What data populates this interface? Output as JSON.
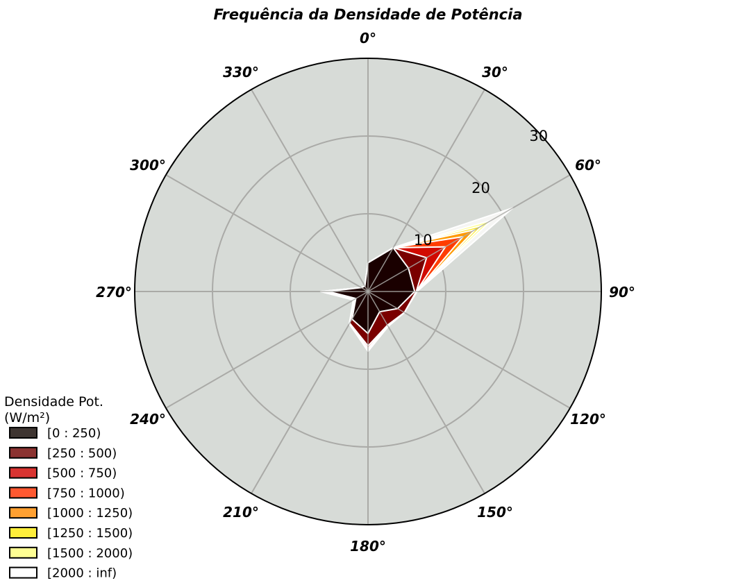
{
  "chart_data": {
    "type": "radar-stacked",
    "title": "Frequência da Densidade de Potência",
    "angle_labels": [
      "0°",
      "30°",
      "60°",
      "90°",
      "120°",
      "150°",
      "180°",
      "210°",
      "240°",
      "270°",
      "300°",
      "330°"
    ],
    "radial_ticks": [
      10,
      20,
      30
    ],
    "radial_tick_labels": [
      "10",
      "20",
      "30"
    ],
    "rlim": [
      0,
      30
    ],
    "directions": [
      0,
      30,
      60,
      90,
      120,
      150,
      180,
      210,
      240,
      270,
      300,
      330
    ],
    "grid": true,
    "background": "#d7dbd7",
    "legend": {
      "title_line1": "Densidade Pot.",
      "title_line2": "(W/m²)",
      "placement": "lower-left"
    },
    "series": [
      {
        "name": "[0 : 250)",
        "color": "#1a0000",
        "legend_color": "#3e3531",
        "values": [
          3.7,
          6.5,
          6.0,
          6.0,
          4.4,
          3.0,
          5.4,
          4.1,
          1.8,
          5.1,
          1.0,
          0.8
        ]
      },
      {
        "name": "[250 : 500)",
        "color": "#7a0000",
        "legend_color": "#8b3331",
        "values": [
          0.0,
          0.0,
          2.7,
          0.2,
          1.0,
          2.0,
          1.6,
          0.6,
          0.2,
          0.2,
          0.0,
          0.0
        ]
      },
      {
        "name": "[500 : 750)",
        "color": "#d10a00",
        "legend_color": "#d93431",
        "values": [
          0.0,
          0.0,
          2.8,
          0.0,
          0.0,
          0.1,
          0.3,
          0.1,
          0.1,
          0.4,
          0.0,
          0.0
        ]
      },
      {
        "name": "[750 : 1000)",
        "color": "#ff3d00",
        "legend_color": "#ff5931",
        "values": [
          0.0,
          0.0,
          2.6,
          0.0,
          0.0,
          0.0,
          0.1,
          0.0,
          0.0,
          0.2,
          0.0,
          0.0
        ]
      },
      {
        "name": "[1000 : 1250)",
        "color": "#ff9a00",
        "legend_color": "#ffa031",
        "values": [
          0.0,
          0.0,
          1.8,
          0.0,
          0.0,
          0.0,
          0.1,
          0.0,
          0.0,
          0.1,
          0.0,
          0.0
        ]
      },
      {
        "name": "[1250 : 1500)",
        "color": "#ffea1c",
        "legend_color": "#ffee3b",
        "values": [
          0.0,
          0.0,
          1.1,
          0.0,
          0.0,
          0.0,
          0.0,
          0.0,
          0.0,
          0.0,
          0.0,
          0.0
        ]
      },
      {
        "name": "[1500 : 2000)",
        "color": "#ffff8c",
        "legend_color": "#ffff94",
        "values": [
          0.0,
          0.0,
          1.3,
          0.0,
          0.0,
          0.0,
          0.1,
          0.0,
          0.0,
          0.0,
          0.0,
          0.0
        ]
      },
      {
        "name": "[2000 : inf)",
        "color": "#f6f6f4",
        "legend_color": "#ffffff",
        "values": [
          0.0,
          0.0,
          3.2,
          0.1,
          0.0,
          0.1,
          0.1,
          0.0,
          0.1,
          0.1,
          0.0,
          0.0
        ]
      }
    ]
  }
}
